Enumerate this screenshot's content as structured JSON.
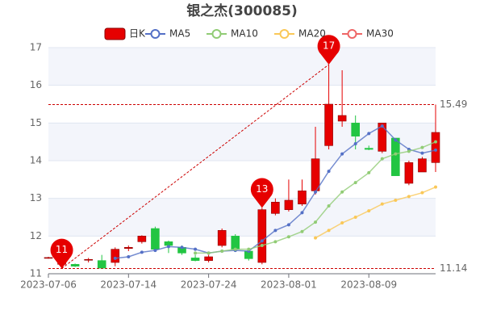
{
  "chart_data": {
    "type": "candlestick",
    "title": "银之杰(300085)",
    "categories": [
      "2023-07-06",
      null,
      null,
      null,
      null,
      null,
      "2023-07-14",
      null,
      null,
      null,
      null,
      null,
      "2023-07-24",
      null,
      null,
      null,
      null,
      null,
      "2023-08-01",
      null,
      null,
      null,
      null,
      null,
      "2023-08-09",
      null,
      null,
      null,
      null,
      null
    ],
    "candles": {
      "name": "日K",
      "up_color": "#e60000",
      "down_color": "#22c542",
      "open": [
        11.42,
        11.25,
        11.25,
        11.36,
        11.35,
        11.3,
        11.67,
        11.85,
        12.2,
        11.85,
        11.7,
        11.42,
        11.35,
        11.75,
        12.0,
        11.6,
        11.3,
        12.6,
        12.7,
        12.85,
        13.2,
        14.4,
        15.05,
        15.0,
        14.33,
        14.25,
        14.6,
        13.4,
        13.7,
        13.95
      ],
      "high": [
        11.45,
        11.4,
        11.27,
        11.42,
        11.5,
        11.7,
        11.75,
        12.02,
        12.25,
        11.88,
        11.75,
        11.5,
        11.5,
        12.2,
        12.05,
        11.65,
        12.75,
        13.0,
        13.5,
        13.5,
        14.9,
        16.55,
        16.4,
        15.2,
        14.4,
        15.0,
        14.6,
        14.0,
        14.1,
        15.49
      ],
      "low": [
        11.4,
        11.14,
        11.18,
        11.3,
        11.15,
        11.2,
        11.6,
        11.8,
        11.6,
        11.55,
        11.5,
        11.33,
        11.3,
        11.7,
        11.6,
        11.35,
        11.25,
        12.55,
        12.65,
        12.8,
        13.1,
        14.3,
        14.9,
        14.3,
        14.28,
        14.2,
        13.6,
        13.35,
        13.7,
        13.7
      ],
      "close": [
        11.43,
        11.35,
        11.2,
        11.38,
        11.15,
        11.65,
        11.7,
        12.0,
        11.65,
        11.75,
        11.55,
        11.35,
        11.45,
        12.15,
        11.65,
        11.4,
        12.7,
        12.9,
        12.95,
        13.2,
        14.05,
        15.5,
        15.2,
        14.65,
        14.3,
        15.0,
        13.6,
        13.95,
        14.05,
        14.75
      ]
    },
    "series": [
      {
        "name": "MA5",
        "color": "#5470c6",
        "values": [
          null,
          null,
          null,
          null,
          null,
          11.41,
          11.45,
          11.57,
          11.62,
          11.72,
          11.7,
          11.65,
          11.55,
          11.6,
          11.62,
          11.6,
          11.87,
          12.15,
          12.3,
          12.62,
          13.17,
          13.72,
          14.18,
          14.45,
          14.72,
          14.92,
          14.55,
          14.3,
          14.2,
          14.28
        ]
      },
      {
        "name": "MA10",
        "color": "#91cc75",
        "values": [
          null,
          null,
          null,
          null,
          null,
          null,
          null,
          null,
          null,
          null,
          null,
          11.55,
          11.55,
          11.6,
          11.65,
          11.65,
          11.75,
          11.85,
          11.98,
          12.12,
          12.37,
          12.8,
          13.17,
          13.42,
          13.68,
          14.05,
          14.18,
          14.25,
          14.35,
          14.5
        ]
      },
      {
        "name": "MA20",
        "color": "#fac858",
        "values": [
          null,
          null,
          null,
          null,
          null,
          null,
          null,
          null,
          null,
          null,
          null,
          null,
          null,
          null,
          null,
          null,
          null,
          null,
          null,
          null,
          11.95,
          12.15,
          12.35,
          12.5,
          12.67,
          12.85,
          12.95,
          13.05,
          13.15,
          13.3
        ]
      },
      {
        "name": "MA30",
        "color": "#ee6666",
        "values": [
          null,
          null,
          null,
          null,
          null,
          null,
          null,
          null,
          null,
          null,
          null,
          null,
          null,
          null,
          null,
          null,
          null,
          null,
          null,
          null,
          null,
          null,
          null,
          null,
          null,
          null,
          null,
          null,
          null,
          null
        ]
      }
    ],
    "markers": [
      {
        "index": 1,
        "value": 11.14,
        "label": "11"
      },
      {
        "index": 16,
        "value": 12.75,
        "label": "13"
      },
      {
        "index": 21,
        "value": 16.55,
        "label": "17"
      }
    ],
    "mark_lines": [
      15.49,
      11.14
    ],
    "ylim": [
      11,
      17
    ],
    "yticks": [
      11,
      12,
      13,
      14,
      15,
      16,
      17
    ],
    "grid": true
  }
}
